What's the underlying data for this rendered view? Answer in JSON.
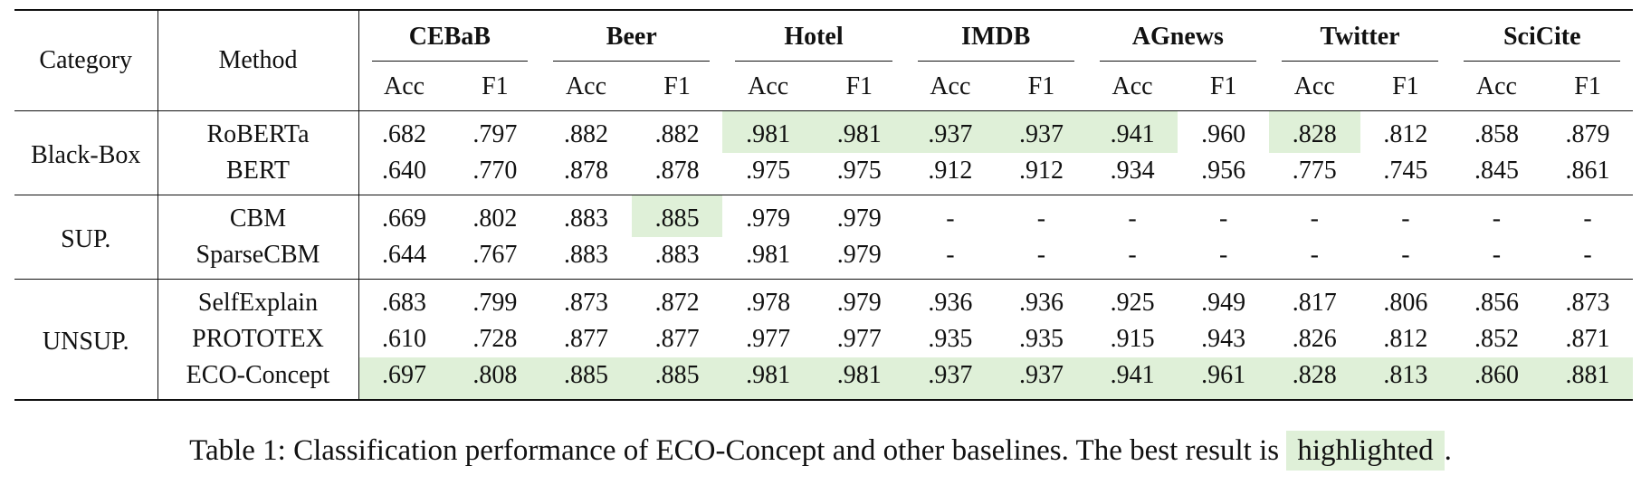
{
  "columns": {
    "category": "Category",
    "method": "Method",
    "datasets": [
      "CEBaB",
      "Beer",
      "Hotel",
      "IMDB",
      "AGnews",
      "Twitter",
      "SciCite"
    ],
    "metrics": [
      "Acc",
      "F1"
    ]
  },
  "groups": [
    {
      "category": "Black-Box",
      "rows": [
        {
          "method": "RoBERTa",
          "values": [
            ".682",
            ".797",
            ".882",
            ".882",
            ".981",
            ".981",
            ".937",
            ".937",
            ".941",
            ".960",
            ".828",
            ".812",
            ".858",
            ".879"
          ],
          "best": [
            false,
            false,
            false,
            false,
            true,
            true,
            true,
            true,
            true,
            false,
            true,
            false,
            false,
            false
          ]
        },
        {
          "method": "BERT",
          "values": [
            ".640",
            ".770",
            ".878",
            ".878",
            ".975",
            ".975",
            ".912",
            ".912",
            ".934",
            ".956",
            ".775",
            ".745",
            ".845",
            ".861"
          ],
          "best": [
            false,
            false,
            false,
            false,
            false,
            false,
            false,
            false,
            false,
            false,
            false,
            false,
            false,
            false
          ]
        }
      ]
    },
    {
      "category": "SUP.",
      "rows": [
        {
          "method": "CBM",
          "values": [
            ".669",
            ".802",
            ".883",
            ".885",
            ".979",
            ".979",
            "-",
            "-",
            "-",
            "-",
            "-",
            "-",
            "-",
            "-"
          ],
          "best": [
            false,
            false,
            false,
            true,
            false,
            false,
            false,
            false,
            false,
            false,
            false,
            false,
            false,
            false
          ]
        },
        {
          "method": "SparseCBM",
          "values": [
            ".644",
            ".767",
            ".883",
            ".883",
            ".981",
            ".979",
            "-",
            "-",
            "-",
            "-",
            "-",
            "-",
            "-",
            "-"
          ],
          "best": [
            false,
            false,
            false,
            false,
            false,
            false,
            false,
            false,
            false,
            false,
            false,
            false,
            false,
            false
          ]
        }
      ]
    },
    {
      "category": "UNSUP.",
      "rows": [
        {
          "method": "SelfExplain",
          "values": [
            ".683",
            ".799",
            ".873",
            ".872",
            ".978",
            ".979",
            ".936",
            ".936",
            ".925",
            ".949",
            ".817",
            ".806",
            ".856",
            ".873"
          ],
          "best": [
            false,
            false,
            false,
            false,
            false,
            false,
            false,
            false,
            false,
            false,
            false,
            false,
            false,
            false
          ]
        },
        {
          "method": "PROTOTEX",
          "values": [
            ".610",
            ".728",
            ".877",
            ".877",
            ".977",
            ".977",
            ".935",
            ".935",
            ".915",
            ".943",
            ".826",
            ".812",
            ".852",
            ".871"
          ],
          "best": [
            false,
            false,
            false,
            false,
            false,
            false,
            false,
            false,
            false,
            false,
            false,
            false,
            false,
            false
          ]
        },
        {
          "method": "ECO-Concept",
          "values": [
            ".697",
            ".808",
            ".885",
            ".885",
            ".981",
            ".981",
            ".937",
            ".937",
            ".941",
            ".961",
            ".828",
            ".813",
            ".860",
            ".881"
          ],
          "best": [
            true,
            true,
            true,
            true,
            true,
            true,
            true,
            true,
            true,
            true,
            true,
            true,
            true,
            true
          ]
        }
      ]
    }
  ],
  "caption": {
    "before": "Table 1: Classification performance of ECO-Concept and other baselines. The best result is ",
    "highlight_word": "highlighted",
    "after": "."
  },
  "colors": {
    "highlight": "#dff0d8",
    "text": "#111111"
  }
}
